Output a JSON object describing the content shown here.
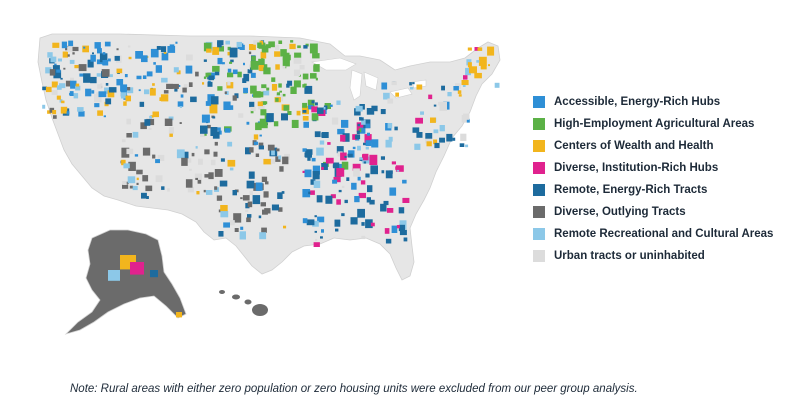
{
  "legend": {
    "items": [
      {
        "label": "Accessible, Energy-Rich Hubs",
        "color": "#2e8fd6"
      },
      {
        "label": "High-Employment Agricultural Areas",
        "color": "#5bb146"
      },
      {
        "label": "Centers of Wealth and Health",
        "color": "#f2b51d"
      },
      {
        "label": "Diverse, Institution-Rich Hubs",
        "color": "#e0228e"
      },
      {
        "label": "Remote, Energy-Rich Tracts",
        "color": "#1d6b9e"
      },
      {
        "label": "Diverse, Outlying Tracts",
        "color": "#6b6b6b"
      },
      {
        "label": "Remote Recreational and Cultural Areas",
        "color": "#8cc8e8"
      },
      {
        "label": "Urban tracts or uninhabited",
        "color": "#dcdcdc"
      }
    ]
  },
  "note": "Note: Rural areas with either zero population or zero housing units were excluded from our peer group analysis.",
  "map": {
    "land_color": "#e6e6e6",
    "border_color": "#ffffff"
  }
}
